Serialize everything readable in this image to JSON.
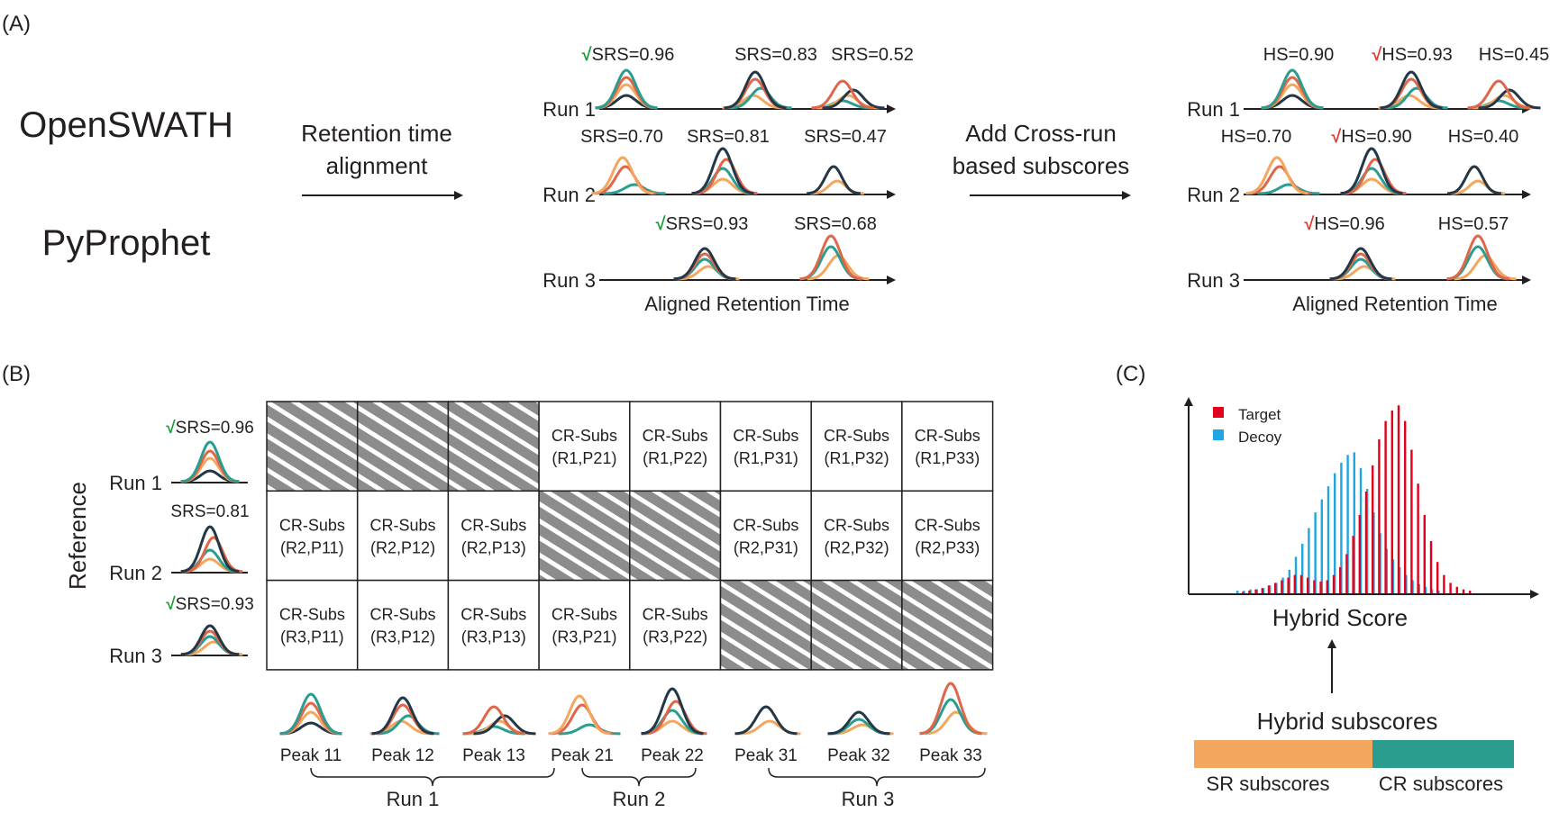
{
  "colors": {
    "navy": "#243746",
    "orange_red": "#e0664a",
    "teal": "#2a9d8f",
    "light_orange": "#f2a65e",
    "target": "#e3001b",
    "decoy": "#1ea7e0",
    "hatch": "#8c8c8c",
    "green_check": "#1a9e3a",
    "red_check": "#e23b2e"
  },
  "panel_a": {
    "label": "(A)",
    "tool1": "OpenSWATH",
    "tool2": "PyProphet",
    "arrow1_line1": "Retention time",
    "arrow1_line2": "alignment",
    "arrow2_line1": "Add Cross-run",
    "arrow2_line2": "based subscores",
    "check": "√",
    "left_plot": {
      "axis_label": "Aligned Retention Time",
      "runs": [
        {
          "label": "Run 1",
          "scores": [
            "SRS=0.96",
            "SRS=0.83",
            "SRS=0.52"
          ]
        },
        {
          "label": "Run 2",
          "scores": [
            "SRS=0.70",
            "SRS=0.81",
            "SRS=0.47"
          ]
        },
        {
          "label": "Run 3",
          "scores": [
            "SRS=0.93",
            "SRS=0.68"
          ]
        }
      ]
    },
    "right_plot": {
      "axis_label": "Aligned Retention Time",
      "runs": [
        {
          "label": "Run 1",
          "scores": [
            "HS=0.90",
            "HS=0.93",
            "HS=0.45"
          ]
        },
        {
          "label": "Run 2",
          "scores": [
            "HS=0.70",
            "HS=0.90",
            "HS=0.40"
          ]
        },
        {
          "label": "Run 3",
          "scores": [
            "HS=0.96",
            "HS=0.57"
          ]
        }
      ]
    }
  },
  "panel_b": {
    "label": "(B)",
    "reference_label": "Reference",
    "check": "√",
    "runs": [
      {
        "label": "Run 1",
        "score": "SRS=0.96"
      },
      {
        "label": "Run 2",
        "score": "SRS=0.81"
      },
      {
        "label": "Run 3",
        "score": "SRS=0.93"
      }
    ],
    "cell_title": "CR-Subs",
    "grid": [
      [
        null,
        null,
        null,
        "(R1,P21)",
        "(R1,P22)",
        "(R1,P31)",
        "(R1,P32)",
        "(R1,P33)"
      ],
      [
        "(R2,P11)",
        "(R2,P12)",
        "(R2,P13)",
        null,
        null,
        "(R2,P31)",
        "(R2,P32)",
        "(R2,P33)"
      ],
      [
        "(R3,P11)",
        "(R3,P12)",
        "(R3,P13)",
        "(R3,P21)",
        "(R3,P22)",
        null,
        null,
        null
      ]
    ],
    "peaks": [
      "Peak 11",
      "Peak 12",
      "Peak 13",
      "Peak 21",
      "Peak 22",
      "Peak 31",
      "Peak 32",
      "Peak 33"
    ],
    "groups": [
      "Run 1",
      "Run 2",
      "Run 3"
    ]
  },
  "panel_c": {
    "label": "(C)",
    "legend_target": "Target",
    "legend_decoy": "Decoy",
    "xlabel": "Hybrid Score",
    "subscores_title": "Hybrid subscores",
    "sr_label": "SR subscores",
    "cr_label": "CR subscores",
    "sr_color": "#f2a65e",
    "cr_color": "#2a9d8f"
  },
  "chart_data": {
    "type": "bar",
    "xlabel": "Hybrid Score",
    "ylabel": "",
    "legend": "top-left",
    "series": [
      {
        "name": "Decoy",
        "values": [
          2,
          2,
          3,
          3,
          4,
          6,
          8,
          12,
          18,
          28,
          38,
          50,
          62,
          72,
          82,
          92,
          100,
          106,
          108,
          96,
          80,
          62,
          46,
          34,
          26,
          20,
          14,
          10,
          7,
          5,
          3,
          2
        ]
      },
      {
        "name": "Target",
        "values": [
          1,
          2,
          3,
          4,
          6,
          8,
          10,
          12,
          14,
          14,
          12,
          10,
          9,
          10,
          14,
          20,
          30,
          44,
          60,
          78,
          98,
          118,
          132,
          140,
          144,
          132,
          110,
          84,
          60,
          40,
          24,
          14,
          8,
          5,
          3,
          2
        ]
      }
    ]
  }
}
